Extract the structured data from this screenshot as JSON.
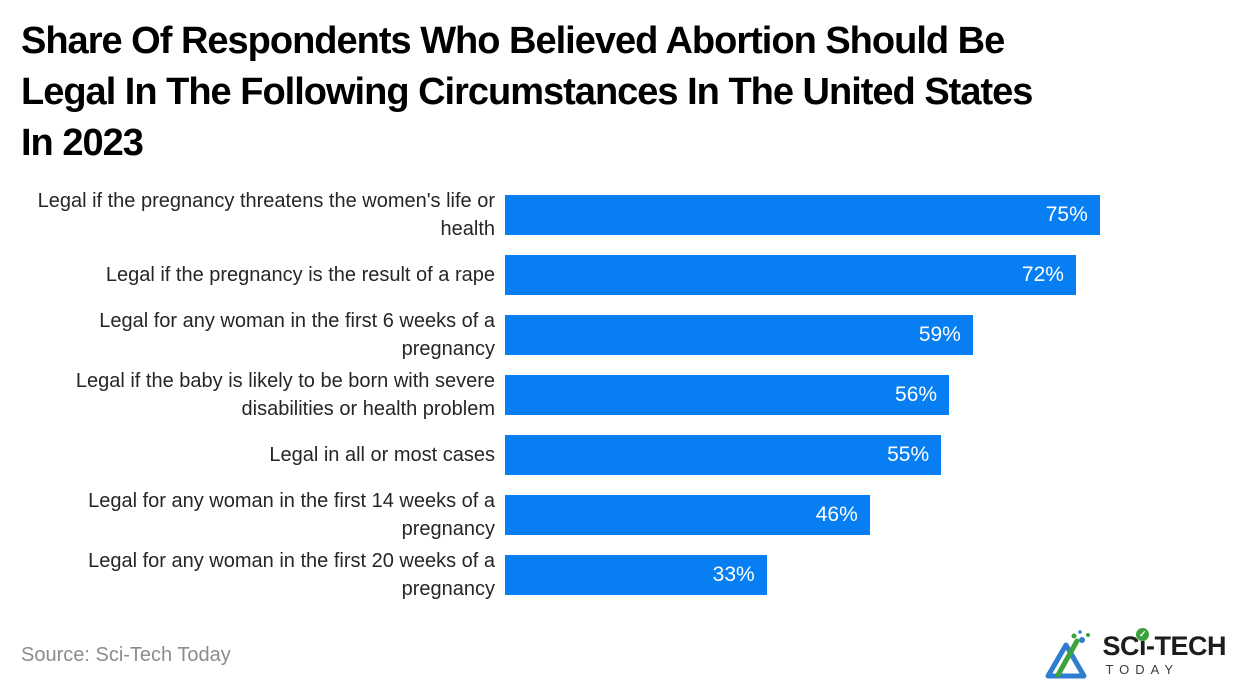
{
  "chart_data": {
    "type": "bar",
    "orientation": "horizontal",
    "title": "Share Of Respondents Who Believed Abortion Should Be Legal In The Following Circumstances In The United States In 2023",
    "title_lines": [
      "Share Of Respondents Who Believed Abortion Should Be",
      "Legal In The Following Circumstances In The United States",
      "In 2023"
    ],
    "categories": [
      "Legal if the pregnancy threatens the women's life or health",
      "Legal if the pregnancy is the result of a rape",
      "Legal for any woman in the first 6 weeks of a pregnancy",
      "Legal if the baby is likely to be born with severe disabilities or health problem",
      "Legal in all or most cases",
      "Legal for any woman in the first 14 weeks of a pregnancy",
      "Legal for any woman in the first 20 weeks of a pregnancy"
    ],
    "values": [
      75,
      72,
      59,
      56,
      55,
      46,
      33
    ],
    "value_labels": [
      "75%",
      "72%",
      "59%",
      "56%",
      "55%",
      "46%",
      "33%"
    ],
    "unit": "%",
    "xlim": [
      0,
      100
    ],
    "grid": false,
    "axes_visible": false,
    "legend": false,
    "bar_color": "#077ff2",
    "value_label_position": "inside-end",
    "value_label_color": "#ffffff"
  },
  "footer": {
    "source": "Source: Sci-Tech Today",
    "logo": {
      "brand_name": "Sci-Tech Today",
      "wordmark_prefix": "SC",
      "wordmark_i": "i",
      "wordmark_suffix": "-TECH",
      "wordmark_secondary": "TODAY",
      "check_glyph": "✓",
      "icon": "flask-icon",
      "color_dark": "#1d1d1b",
      "color_green": "#3ba23c",
      "color_blue": "#2e7dd1"
    }
  },
  "colors": {
    "background": "#ffffff",
    "title": "#000000",
    "category_label": "#262626",
    "source": "#8c8c8c"
  }
}
